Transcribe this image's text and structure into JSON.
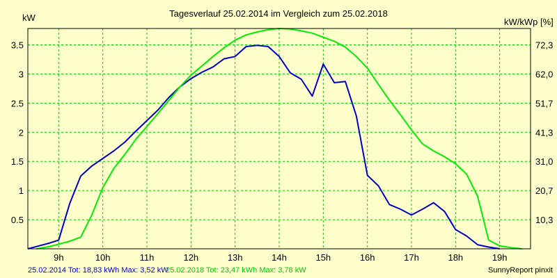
{
  "chart_data": {
    "type": "line",
    "title": "Tagesverlauf 25.02.2014 im Vergleich zum 25.02.2018",
    "ylabel": "kW",
    "y2label": "kW/kWp [%]",
    "xlim": [
      8.3,
      19.7
    ],
    "ylim": [
      0,
      3.78
    ],
    "grid": true,
    "x_ticks": [
      {
        "value": 9,
        "label": "9h"
      },
      {
        "value": 10,
        "label": "10h"
      },
      {
        "value": 11,
        "label": "11h"
      },
      {
        "value": 12,
        "label": "12h"
      },
      {
        "value": 13,
        "label": "13h"
      },
      {
        "value": 14,
        "label": "14h"
      },
      {
        "value": 15,
        "label": "15h"
      },
      {
        "value": 16,
        "label": "16h"
      },
      {
        "value": 17,
        "label": "17h"
      },
      {
        "value": 18,
        "label": "18h"
      },
      {
        "value": 19,
        "label": "19h"
      }
    ],
    "y_ticks": [
      {
        "value": 0.5,
        "label": "0.5"
      },
      {
        "value": 1,
        "label": "1"
      },
      {
        "value": 1.5,
        "label": "1.5"
      },
      {
        "value": 2,
        "label": "2"
      },
      {
        "value": 2.5,
        "label": "2.5"
      },
      {
        "value": 3,
        "label": "3"
      },
      {
        "value": 3.5,
        "label": "3.5"
      }
    ],
    "y2_ticks": [
      {
        "value": 0.5,
        "label": "10,3"
      },
      {
        "value": 1,
        "label": "20,7"
      },
      {
        "value": 1.5,
        "label": "31,0"
      },
      {
        "value": 2,
        "label": "41,3"
      },
      {
        "value": 2.5,
        "label": "51,7"
      },
      {
        "value": 3,
        "label": "62,0"
      },
      {
        "value": 3.5,
        "label": "72,3"
      }
    ],
    "series": [
      {
        "name": "25.02.2014",
        "color": "#0000cc",
        "x": [
          8.3,
          8.55,
          8.8,
          9.0,
          9.25,
          9.5,
          9.75,
          10.0,
          10.25,
          10.5,
          10.75,
          11.0,
          11.25,
          11.5,
          11.75,
          12.0,
          12.25,
          12.5,
          12.75,
          13.0,
          13.25,
          13.5,
          13.75,
          14.0,
          14.25,
          14.5,
          14.75,
          15.0,
          15.25,
          15.5,
          15.75,
          16.0,
          16.25,
          16.5,
          16.75,
          17.0,
          17.25,
          17.5,
          17.75,
          18.0,
          18.25,
          18.5,
          18.75,
          19.0
        ],
        "y": [
          0.0,
          0.05,
          0.1,
          0.15,
          0.78,
          1.25,
          1.42,
          1.55,
          1.68,
          1.83,
          2.02,
          2.2,
          2.38,
          2.6,
          2.78,
          2.92,
          3.03,
          3.12,
          3.26,
          3.3,
          3.47,
          3.49,
          3.47,
          3.3,
          3.02,
          2.91,
          2.62,
          3.17,
          2.85,
          2.87,
          2.28,
          1.26,
          1.08,
          0.76,
          0.68,
          0.58,
          0.68,
          0.79,
          0.64,
          0.33,
          0.22,
          0.07,
          0.03,
          0.0
        ]
      },
      {
        "name": "25.02.2018",
        "color": "#00ee00",
        "x": [
          8.5,
          8.8,
          9.0,
          9.25,
          9.5,
          9.75,
          10.0,
          10.25,
          10.5,
          10.75,
          11.0,
          11.25,
          11.5,
          11.75,
          12.0,
          12.25,
          12.5,
          12.75,
          13.0,
          13.25,
          13.5,
          13.75,
          14.0,
          14.25,
          14.5,
          14.75,
          15.0,
          15.25,
          15.5,
          15.75,
          16.0,
          16.25,
          16.5,
          16.75,
          17.0,
          17.25,
          17.5,
          17.75,
          18.0,
          18.25,
          18.5,
          18.75,
          19.0,
          19.25,
          19.5
        ],
        "y": [
          0.0,
          0.04,
          0.08,
          0.13,
          0.2,
          0.58,
          1.05,
          1.38,
          1.62,
          1.88,
          2.1,
          2.32,
          2.55,
          2.78,
          2.98,
          3.14,
          3.3,
          3.45,
          3.58,
          3.67,
          3.72,
          3.76,
          3.78,
          3.77,
          3.74,
          3.7,
          3.63,
          3.56,
          3.46,
          3.3,
          3.1,
          2.82,
          2.55,
          2.3,
          2.04,
          1.8,
          1.68,
          1.58,
          1.46,
          1.28,
          0.9,
          0.15,
          0.05,
          0.02,
          0.0
        ]
      }
    ]
  },
  "footer": {
    "series1_text": "25.02.2014 Tot: 18,83 kWh Max: 3,52 kW",
    "series2_text": "25.02.2018 Tot: 23,47 kWh Max: 3,78 kW",
    "credit": "SunnyReport pinxit"
  },
  "colors": {
    "background": "#ffffcc",
    "grid": "#00cc00",
    "series1": "#0000cc",
    "series2": "#00ee00"
  }
}
